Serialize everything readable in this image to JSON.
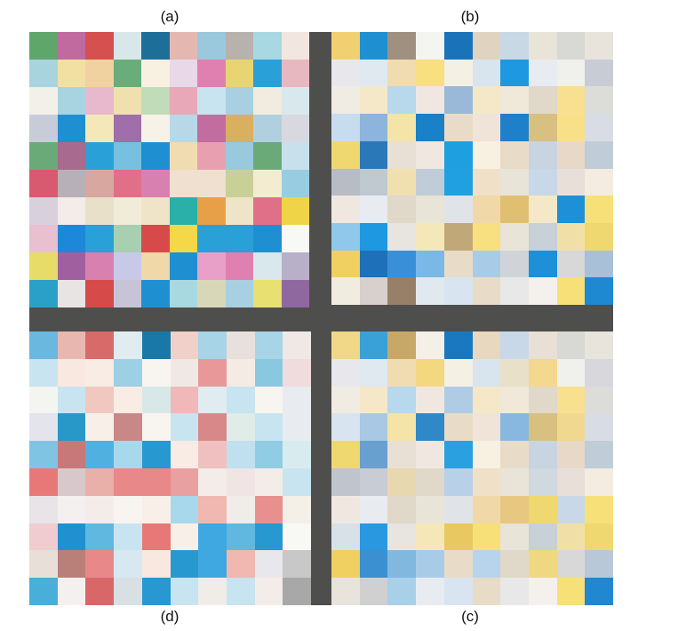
{
  "labels": {
    "a": "(a)",
    "b": "(b)",
    "c": "(c)",
    "d": "(d)"
  },
  "background": "#4e4e4c",
  "panels": {
    "a": [
      [
        "#5ea66a",
        "#c06aa0",
        "#d65050",
        "#d8e8ea",
        "#1e6e9a",
        "#e4b8b0",
        "#9ac8dc",
        "#b8b2ae",
        "#a8d8e2",
        "#f2e6e0"
      ],
      [
        "#a8d4de",
        "#f2e0a2",
        "#f0d2a0",
        "#6aac7a",
        "#f8f0e0",
        "#e8d8e8",
        "#e080b0",
        "#e8d470",
        "#2aa0d8",
        "#e8b8c0"
      ],
      [
        "#f2f0e8",
        "#a8d4e2",
        "#e8b8cc",
        "#f0e0b0",
        "#c0dcb8",
        "#e8a8b8",
        "#c8e4f0",
        "#a8d0e0",
        "#f2ece0",
        "#d8e8ec"
      ],
      [
        "#c8ccd8",
        "#1e90d2",
        "#f4e8b8",
        "#a06ea8",
        "#f6f2e8",
        "#b8d8e8",
        "#c26ca0",
        "#d8b060",
        "#b0d0e0",
        "#d8d8e0"
      ],
      [
        "#6aaa78",
        "#a86a8e",
        "#2aa0d8",
        "#78c0e0",
        "#1e90d2",
        "#f0dcb0",
        "#e8a0b0",
        "#9ac8dc",
        "#6aaa78",
        "#c8e0ec"
      ],
      [
        "#d85a70",
        "#b8b0b8",
        "#d8a8a0",
        "#e07088",
        "#d880b0",
        "#f0e0d0",
        "#f0e0d0",
        "#c8d098",
        "#f4ecd0",
        "#98cce0"
      ],
      [
        "#d8d0dc",
        "#f4ece8",
        "#e8e0c8",
        "#f0ecd8",
        "#f0e4c8",
        "#2ab0a8",
        "#e8a048",
        "#f0e4c8",
        "#e07088",
        "#f0d448"
      ],
      [
        "#e8c0d0",
        "#1e88d8",
        "#2aa0d8",
        "#a8d0b0",
        "#d64a4a",
        "#f4d848",
        "#2aa0d8",
        "#2aa0d8",
        "#1e90d2",
        "#f8f8f4"
      ],
      [
        "#e8dc68",
        "#a060a0",
        "#d880b0",
        "#c8c8e8",
        "#f0d8a8",
        "#1e90d2",
        "#e8a0c8",
        "#e080b0",
        "#d8e8ec",
        "#b8b0c8"
      ],
      [
        "#2aa0c8",
        "#e8e4e4",
        "#d64a4a",
        "#c8c4d8",
        "#1e90d2",
        "#a8d8e0",
        "#d8d8b8",
        "#a8d0e0",
        "#e8e070",
        "#9068a0"
      ]
    ],
    "b": [
      [
        "#f0d070",
        "#1e90d2",
        "#a09080",
        "#f4f4f0",
        "#1a72b8",
        "#e0d4c0",
        "#c8d8e4",
        "#e8e4d8",
        "#d8d8d4",
        "#e8e4dc"
      ],
      [
        "#e8e8ec",
        "#e0e8f0",
        "#f0dcb0",
        "#f8e080",
        "#f4f0e4",
        "#d8e4ee",
        "#1e98e0",
        "#e8ecf0",
        "#f0f0ec",
        "#c8ccd4"
      ],
      [
        "#f0ece4",
        "#f4e8c8",
        "#b8d8ec",
        "#f0e8e0",
        "#9ab8d8",
        "#f4e8c8",
        "#f0e8d8",
        "#e0d8c8",
        "#f8e090",
        "#dcdcd8"
      ],
      [
        "#c8dcf0",
        "#8cb4dc",
        "#f4e4a8",
        "#1a80c8",
        "#e8dcc8",
        "#f0e4d8",
        "#1e80c8",
        "#d8c080",
        "#f8e088",
        "#d8dce4"
      ],
      [
        "#f0d870",
        "#2a78b8",
        "#e8e0d4",
        "#f0e8e0",
        "#1ea0e0",
        "#f8f0e0",
        "#e8dcc8",
        "#c8d4e0",
        "#e8d8c8",
        "#c0ccd8"
      ],
      [
        "#b8bcc4",
        "#c0c8d0",
        "#f0e0b0",
        "#c0ccd8",
        "#20a0e0",
        "#f0e0c8",
        "#e8e4d8",
        "#c8d8e8",
        "#e8e0d8",
        "#f4ece0"
      ],
      [
        "#f0e8e0",
        "#e8ecf0",
        "#e0d8c8",
        "#e8e4d8",
        "#e0e4e8",
        "#f0d8a8",
        "#e0c070",
        "#f4e8c8",
        "#1e90d8",
        "#f8e078"
      ],
      [
        "#90c8ec",
        "#1e98e0",
        "#e8e4e0",
        "#f4e8b8",
        "#c0a878",
        "#f8e080",
        "#e8e4d8",
        "#c8d0d8",
        "#f0e0a8",
        "#f0d870"
      ],
      [
        "#f0d060",
        "#1e70b8",
        "#3a90d8",
        "#7ab8e8",
        "#e8dcc8",
        "#a8cce8",
        "#d0d4d8",
        "#1e90d8",
        "#d8d8d8",
        "#a8c0d8"
      ],
      [
        "#f0ece0",
        "#d8d0cc",
        "#988068",
        "#e0e8f0",
        "#d8e4f0",
        "#e8dcc8",
        "#e8e8e8",
        "#f4f0ec",
        "#f8e078",
        "#1e88d0"
      ]
    ],
    "d": [
      [
        "#6ab8e0",
        "#e8b8b0",
        "#d86a6a",
        "#e0ecf0",
        "#1a78a8",
        "#f0d0c8",
        "#a8d4e8",
        "#e8e0dc",
        "#a8d4e8",
        "#f0e8e4"
      ],
      [
        "#c8e4f0",
        "#f8e8e0",
        "#f8ece4",
        "#9cd0e4",
        "#f8f4f0",
        "#f0e8e4",
        "#e89898",
        "#f4ece4",
        "#8ac8e0",
        "#f0dcdc"
      ],
      [
        "#f4f4f0",
        "#c8e4f0",
        "#f0c8c0",
        "#f8ece4",
        "#d8e8e8",
        "#f0b8b8",
        "#e0ecf0",
        "#c8e4f0",
        "#f8f4f0",
        "#e8ecf0"
      ],
      [
        "#e4e4ec",
        "#2898c8",
        "#f8f0e8",
        "#c88888",
        "#f8f4f0",
        "#c8e4f0",
        "#d88888",
        "#e0ece8",
        "#c8e4f0",
        "#e8ecf0"
      ],
      [
        "#80c4e4",
        "#c87878",
        "#50b0e0",
        "#a8d8ec",
        "#2898d0",
        "#f8ece4",
        "#f0c0c0",
        "#c0e0f0",
        "#90cce4",
        "#d8ecf0"
      ],
      [
        "#e87878",
        "#d8c8cc",
        "#e8b0a8",
        "#e88888",
        "#e88888",
        "#e8a0a0",
        "#f4ece8",
        "#f0e4e4",
        "#f4ece8",
        "#c8e4f0"
      ],
      [
        "#e8e4e8",
        "#f4f0f0",
        "#f4ece8",
        "#f8f4f0",
        "#f8f0e8",
        "#a8d8ec",
        "#f0b8b0",
        "#f0ece8",
        "#e89090",
        "#f4f0e8"
      ],
      [
        "#f0ccd0",
        "#2090d0",
        "#60b8e0",
        "#c8e4f0",
        "#e87878",
        "#f8f0e8",
        "#40a8e0",
        "#60b8e0",
        "#2898d0",
        "#f8f8f4"
      ],
      [
        "#e8e0d8",
        "#b88078",
        "#e88888",
        "#d8e8f0",
        "#f8e8e0",
        "#2898d0",
        "#40a8e0",
        "#f0b8b0",
        "#e8e8ec",
        "#c8c8c8"
      ],
      [
        "#48b0d8",
        "#f4f0f0",
        "#d86868",
        "#d8e0e4",
        "#2898d0",
        "#c8e4f0",
        "#f0ece8",
        "#c8e4f0",
        "#f4ece8",
        "#a8a8a8"
      ]
    ],
    "c": [
      [
        "#f0d888",
        "#3aa0d8",
        "#c8a868",
        "#f4f0e8",
        "#1a78c0",
        "#e8d8c0",
        "#c8d8e8",
        "#e8e0d4",
        "#d8d8d4",
        "#e8e4dc"
      ],
      [
        "#e8e8ec",
        "#e0e8f0",
        "#f0dcb0",
        "#f4d880",
        "#f4f0e4",
        "#d8e4ee",
        "#e8e0c8",
        "#f4d890",
        "#f0f0ec",
        "#d8d8dc"
      ],
      [
        "#f0ece4",
        "#f4e8c8",
        "#b8d8ec",
        "#f0e8e0",
        "#b0cce4",
        "#f4e8c8",
        "#f0e8d8",
        "#e0d8c8",
        "#f8e090",
        "#dcdcd8"
      ],
      [
        "#d8e4f0",
        "#a8c8e4",
        "#f4e4a8",
        "#3088c8",
        "#e8dcc8",
        "#f0e4d8",
        "#88b8e0",
        "#d8c080",
        "#f0d890",
        "#d8dce4"
      ],
      [
        "#f0d870",
        "#68a0d0",
        "#e8e0d4",
        "#f0e8e0",
        "#2aa0e0",
        "#f8f0e0",
        "#e8dcc8",
        "#c8d4e0",
        "#e8d8c8",
        "#c0ccd8"
      ],
      [
        "#c0c4cc",
        "#c8ccd4",
        "#e8d8b0",
        "#e0d8c8",
        "#b8d0e8",
        "#f0e0c8",
        "#e8e4d8",
        "#d0d8e0",
        "#e8e0d8",
        "#f4ece0"
      ],
      [
        "#f0e8e0",
        "#e8ecf0",
        "#e0d8c8",
        "#e8e4d8",
        "#e0e4e8",
        "#f0d8a8",
        "#e8c880",
        "#f0d870",
        "#c8d8e8",
        "#f8e078"
      ],
      [
        "#d8e0e8",
        "#2a98e0",
        "#e8e4e0",
        "#f4e8b8",
        "#e8c860",
        "#f8e078",
        "#e8e4d8",
        "#c8d0d8",
        "#f0e0a8",
        "#f0d870"
      ],
      [
        "#f0d060",
        "#3a90d0",
        "#80b8e0",
        "#a8cce8",
        "#e8dcc8",
        "#b8d4ec",
        "#e0d8c8",
        "#f0d880",
        "#d8d8d8",
        "#b8c8d8"
      ],
      [
        "#e8e4dc",
        "#d0d0d0",
        "#a8d0e8",
        "#e8ecf0",
        "#d8e4f0",
        "#e8dcc8",
        "#e8e8e8",
        "#f4f0ec",
        "#f8e078",
        "#2088d0"
      ]
    ]
  }
}
